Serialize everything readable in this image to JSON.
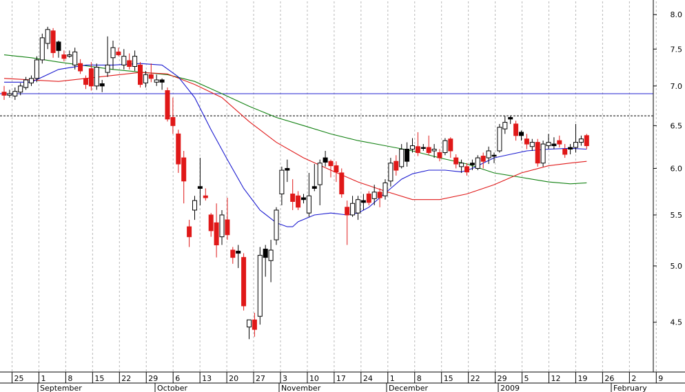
{
  "chart_data": {
    "type": "candlestick",
    "y_scale": "log",
    "ylim": [
      4.1,
      8.2
    ],
    "y_ticks": [
      "8.0",
      "7.5",
      "7.0",
      "6.5",
      "6.0",
      "5.5",
      "5.0",
      "4.5"
    ],
    "x_day_ticks": [
      "25",
      "1",
      "8",
      "15",
      "22",
      "29",
      "6",
      "13",
      "20",
      "27",
      "3",
      "10",
      "17",
      "24",
      "1",
      "8",
      "15",
      "22",
      "29",
      "5",
      "12",
      "19",
      "26",
      "2",
      "9"
    ],
    "x_month_labels": [
      "September",
      "October",
      "November",
      "December",
      "2009",
      "February"
    ],
    "horizontal_lines": [
      {
        "value": 6.9,
        "style": "solid",
        "color": "#1f1fcf"
      },
      {
        "value": 6.62,
        "style": "dashed",
        "color": "#000000"
      }
    ],
    "colors": {
      "up": "#ffffff",
      "down": "#e01818",
      "ma_fast": "#1a1ad0",
      "ma_mid": "#e01818",
      "ma_slow": "#108010",
      "grid": "#b8b8b8"
    },
    "candles": [
      {
        "o": 6.88,
        "h": 7.0,
        "l": 6.82,
        "c": 6.92,
        "col": "r"
      },
      {
        "o": 6.9,
        "h": 6.95,
        "l": 6.85,
        "c": 6.88,
        "col": "w"
      },
      {
        "o": 6.87,
        "h": 6.98,
        "l": 6.82,
        "c": 6.93,
        "col": "w"
      },
      {
        "o": 6.92,
        "h": 7.04,
        "l": 6.88,
        "c": 7.0,
        "col": "w"
      },
      {
        "o": 6.98,
        "h": 7.12,
        "l": 6.95,
        "c": 7.08,
        "col": "w"
      },
      {
        "o": 7.04,
        "h": 7.14,
        "l": 7.0,
        "c": 7.1,
        "col": "w"
      },
      {
        "o": 7.1,
        "h": 7.4,
        "l": 7.05,
        "c": 7.35,
        "col": "w"
      },
      {
        "o": 7.35,
        "h": 7.72,
        "l": 7.3,
        "c": 7.66,
        "col": "w"
      },
      {
        "o": 7.58,
        "h": 7.82,
        "l": 7.5,
        "c": 7.78,
        "col": "w"
      },
      {
        "o": 7.76,
        "h": 7.8,
        "l": 7.38,
        "c": 7.45,
        "col": "r"
      },
      {
        "o": 7.6,
        "h": 7.62,
        "l": 7.38,
        "c": 7.48,
        "col": "b"
      },
      {
        "o": 7.42,
        "h": 7.48,
        "l": 7.33,
        "c": 7.37,
        "col": "r"
      },
      {
        "o": 7.42,
        "h": 7.48,
        "l": 7.38,
        "c": 7.4,
        "col": "w"
      },
      {
        "o": 7.28,
        "h": 7.52,
        "l": 7.22,
        "c": 7.46,
        "col": "w"
      },
      {
        "o": 7.3,
        "h": 7.36,
        "l": 7.16,
        "c": 7.2,
        "col": "r"
      },
      {
        "o": 7.1,
        "h": 7.14,
        "l": 6.96,
        "c": 7.02,
        "col": "r"
      },
      {
        "o": 7.23,
        "h": 7.32,
        "l": 6.94,
        "c": 7.0,
        "col": "r"
      },
      {
        "o": 7.0,
        "h": 7.3,
        "l": 6.95,
        "c": 7.25,
        "col": "w"
      },
      {
        "o": 7.0,
        "h": 7.08,
        "l": 6.92,
        "c": 7.03,
        "col": "b"
      },
      {
        "o": 7.18,
        "h": 7.68,
        "l": 7.12,
        "c": 7.28,
        "col": "w"
      },
      {
        "o": 7.38,
        "h": 7.62,
        "l": 7.22,
        "c": 7.52,
        "col": "w"
      },
      {
        "o": 7.46,
        "h": 7.52,
        "l": 7.4,
        "c": 7.42,
        "col": "r"
      },
      {
        "o": 7.4,
        "h": 7.5,
        "l": 7.22,
        "c": 7.28,
        "col": "w"
      },
      {
        "o": 7.34,
        "h": 7.44,
        "l": 7.22,
        "c": 7.26,
        "col": "r"
      },
      {
        "o": 7.26,
        "h": 7.48,
        "l": 7.2,
        "c": 7.4,
        "col": "w"
      },
      {
        "o": 7.28,
        "h": 7.32,
        "l": 6.98,
        "c": 7.02,
        "col": "r"
      },
      {
        "o": 7.04,
        "h": 7.2,
        "l": 6.98,
        "c": 7.15,
        "col": "w"
      },
      {
        "o": 7.15,
        "h": 7.3,
        "l": 7.05,
        "c": 7.1,
        "col": "r"
      },
      {
        "o": 7.05,
        "h": 7.15,
        "l": 7.0,
        "c": 7.08,
        "col": "w"
      },
      {
        "o": 7.08,
        "h": 7.1,
        "l": 6.95,
        "c": 7.05,
        "col": "b"
      },
      {
        "o": 6.94,
        "h": 6.98,
        "l": 6.55,
        "c": 6.58,
        "col": "r"
      },
      {
        "o": 6.6,
        "h": 6.85,
        "l": 6.4,
        "c": 6.5,
        "col": "r"
      },
      {
        "o": 6.4,
        "h": 6.45,
        "l": 5.95,
        "c": 6.05,
        "col": "r"
      },
      {
        "o": 6.12,
        "h": 6.2,
        "l": 5.62,
        "c": 5.86,
        "col": "r"
      },
      {
        "o": 5.38,
        "h": 5.45,
        "l": 5.18,
        "c": 5.28,
        "col": "r"
      },
      {
        "o": 5.55,
        "h": 5.7,
        "l": 5.45,
        "c": 5.65,
        "col": "w"
      },
      {
        "o": 5.8,
        "h": 6.12,
        "l": 5.6,
        "c": 5.78,
        "col": "b"
      },
      {
        "o": 5.7,
        "h": 5.78,
        "l": 5.65,
        "c": 5.68,
        "col": "r"
      },
      {
        "o": 5.5,
        "h": 5.52,
        "l": 5.28,
        "c": 5.34,
        "col": "r"
      },
      {
        "o": 5.42,
        "h": 5.62,
        "l": 5.08,
        "c": 5.2,
        "col": "r"
      },
      {
        "o": 5.28,
        "h": 5.55,
        "l": 5.2,
        "c": 5.5,
        "col": "w"
      },
      {
        "o": 5.45,
        "h": 5.68,
        "l": 5.25,
        "c": 5.3,
        "col": "r"
      },
      {
        "o": 5.15,
        "h": 5.18,
        "l": 5.02,
        "c": 5.08,
        "col": "r"
      },
      {
        "o": 5.12,
        "h": 5.2,
        "l": 4.98,
        "c": 5.14,
        "col": "b"
      },
      {
        "o": 5.08,
        "h": 5.12,
        "l": 4.6,
        "c": 4.64,
        "col": "r"
      },
      {
        "o": 4.46,
        "h": 4.5,
        "l": 4.36,
        "c": 4.52,
        "col": "w"
      },
      {
        "o": 4.52,
        "h": 4.58,
        "l": 4.38,
        "c": 4.44,
        "col": "r"
      },
      {
        "o": 4.55,
        "h": 5.18,
        "l": 4.48,
        "c": 5.1,
        "col": "w"
      },
      {
        "o": 5.08,
        "h": 5.2,
        "l": 4.9,
        "c": 5.16,
        "col": "b"
      },
      {
        "o": 5.05,
        "h": 5.25,
        "l": 4.85,
        "c": 5.15,
        "col": "w"
      },
      {
        "o": 5.25,
        "h": 5.58,
        "l": 5.2,
        "c": 5.55,
        "col": "w"
      },
      {
        "o": 5.72,
        "h": 6.02,
        "l": 5.6,
        "c": 5.98,
        "col": "w"
      },
      {
        "o": 5.98,
        "h": 6.1,
        "l": 5.85,
        "c": 6.0,
        "col": "b"
      },
      {
        "o": 5.72,
        "h": 5.88,
        "l": 5.55,
        "c": 5.64,
        "col": "r"
      },
      {
        "o": 5.7,
        "h": 5.75,
        "l": 5.55,
        "c": 5.58,
        "col": "r"
      },
      {
        "o": 5.68,
        "h": 5.72,
        "l": 5.62,
        "c": 5.66,
        "col": "b"
      },
      {
        "o": 5.52,
        "h": 5.95,
        "l": 5.48,
        "c": 5.7,
        "col": "w"
      },
      {
        "o": 5.78,
        "h": 6.05,
        "l": 5.75,
        "c": 5.8,
        "col": "b"
      },
      {
        "o": 5.82,
        "h": 6.1,
        "l": 5.6,
        "c": 6.06,
        "col": "w"
      },
      {
        "o": 6.07,
        "h": 6.2,
        "l": 6.02,
        "c": 6.12,
        "col": "b"
      },
      {
        "o": 6.08,
        "h": 6.1,
        "l": 5.9,
        "c": 6.03,
        "col": "r"
      },
      {
        "o": 6.03,
        "h": 6.08,
        "l": 5.85,
        "c": 5.96,
        "col": "r"
      },
      {
        "o": 5.95,
        "h": 6.0,
        "l": 5.68,
        "c": 5.72,
        "col": "r"
      },
      {
        "o": 5.58,
        "h": 5.65,
        "l": 5.2,
        "c": 5.5,
        "col": "r"
      },
      {
        "o": 5.5,
        "h": 5.7,
        "l": 5.48,
        "c": 5.62,
        "col": "w"
      },
      {
        "o": 5.52,
        "h": 5.7,
        "l": 5.45,
        "c": 5.66,
        "col": "w"
      },
      {
        "o": 5.63,
        "h": 5.72,
        "l": 5.55,
        "c": 5.65,
        "col": "b"
      },
      {
        "o": 5.72,
        "h": 5.75,
        "l": 5.6,
        "c": 5.63,
        "col": "r"
      },
      {
        "o": 5.67,
        "h": 5.82,
        "l": 5.6,
        "c": 5.74,
        "col": "w"
      },
      {
        "o": 5.74,
        "h": 5.78,
        "l": 5.58,
        "c": 5.68,
        "col": "r"
      },
      {
        "o": 5.7,
        "h": 5.88,
        "l": 5.66,
        "c": 5.84,
        "col": "w"
      },
      {
        "o": 5.86,
        "h": 6.12,
        "l": 5.8,
        "c": 6.06,
        "col": "w"
      },
      {
        "o": 6.08,
        "h": 6.15,
        "l": 5.92,
        "c": 5.98,
        "col": "r"
      },
      {
        "o": 6.02,
        "h": 6.28,
        "l": 6.0,
        "c": 6.22,
        "col": "w"
      },
      {
        "o": 6.22,
        "h": 6.3,
        "l": 6.02,
        "c": 6.08,
        "col": "b"
      },
      {
        "o": 6.22,
        "h": 6.35,
        "l": 6.18,
        "c": 6.26,
        "col": "w"
      },
      {
        "o": 6.25,
        "h": 6.42,
        "l": 6.14,
        "c": 6.18,
        "col": "r"
      },
      {
        "o": 6.23,
        "h": 6.28,
        "l": 6.2,
        "c": 6.24,
        "col": "b"
      },
      {
        "o": 6.24,
        "h": 6.38,
        "l": 6.15,
        "c": 6.18,
        "col": "r"
      },
      {
        "o": 6.2,
        "h": 6.28,
        "l": 6.12,
        "c": 6.22,
        "col": "w"
      },
      {
        "o": 6.18,
        "h": 6.22,
        "l": 6.08,
        "c": 6.12,
        "col": "r"
      },
      {
        "o": 6.18,
        "h": 6.35,
        "l": 6.15,
        "c": 6.32,
        "col": "w"
      },
      {
        "o": 6.34,
        "h": 6.36,
        "l": 6.12,
        "c": 6.2,
        "col": "r"
      },
      {
        "o": 6.12,
        "h": 6.16,
        "l": 6.0,
        "c": 6.05,
        "col": "r"
      },
      {
        "o": 6.02,
        "h": 6.1,
        "l": 5.95,
        "c": 6.06,
        "col": "w"
      },
      {
        "o": 6.02,
        "h": 6.06,
        "l": 5.92,
        "c": 5.96,
        "col": "r"
      },
      {
        "o": 6.04,
        "h": 6.1,
        "l": 5.98,
        "c": 6.06,
        "col": "b"
      },
      {
        "o": 6.0,
        "h": 6.15,
        "l": 5.98,
        "c": 6.12,
        "col": "w"
      },
      {
        "o": 6.08,
        "h": 6.18,
        "l": 6.0,
        "c": 6.14,
        "col": "r"
      },
      {
        "o": 6.12,
        "h": 6.25,
        "l": 6.05,
        "c": 6.2,
        "col": "w"
      },
      {
        "o": 6.14,
        "h": 6.18,
        "l": 6.06,
        "c": 6.15,
        "col": "b"
      },
      {
        "o": 6.2,
        "h": 6.52,
        "l": 6.18,
        "c": 6.48,
        "col": "w"
      },
      {
        "o": 6.46,
        "h": 6.62,
        "l": 6.4,
        "c": 6.54,
        "col": "w"
      },
      {
        "o": 6.58,
        "h": 6.62,
        "l": 6.52,
        "c": 6.6,
        "col": "b"
      },
      {
        "o": 6.52,
        "h": 6.56,
        "l": 6.32,
        "c": 6.38,
        "col": "r"
      },
      {
        "o": 6.38,
        "h": 6.44,
        "l": 6.32,
        "c": 6.42,
        "col": "b"
      },
      {
        "o": 6.34,
        "h": 6.4,
        "l": 6.22,
        "c": 6.28,
        "col": "r"
      },
      {
        "o": 6.25,
        "h": 6.34,
        "l": 6.2,
        "c": 6.3,
        "col": "w"
      },
      {
        "o": 6.3,
        "h": 6.34,
        "l": 6.02,
        "c": 6.06,
        "col": "r"
      },
      {
        "o": 6.06,
        "h": 6.32,
        "l": 6.02,
        "c": 6.28,
        "col": "w"
      },
      {
        "o": 6.26,
        "h": 6.4,
        "l": 6.22,
        "c": 6.3,
        "col": "w"
      },
      {
        "o": 6.28,
        "h": 6.36,
        "l": 6.22,
        "c": 6.26,
        "col": "b"
      },
      {
        "o": 6.32,
        "h": 6.38,
        "l": 6.24,
        "c": 6.28,
        "col": "r"
      },
      {
        "o": 6.22,
        "h": 6.28,
        "l": 6.12,
        "c": 6.16,
        "col": "r"
      },
      {
        "o": 6.24,
        "h": 6.28,
        "l": 6.16,
        "c": 6.22,
        "col": "b"
      },
      {
        "o": 6.24,
        "h": 6.52,
        "l": 6.18,
        "c": 6.3,
        "col": "w"
      },
      {
        "o": 6.3,
        "h": 6.38,
        "l": 6.26,
        "c": 6.34,
        "col": "w"
      },
      {
        "o": 6.38,
        "h": 6.4,
        "l": 6.22,
        "c": 6.26,
        "col": "r"
      }
    ],
    "ma_fast": [
      [
        0,
        7.05
      ],
      [
        5,
        7.05
      ],
      [
        10,
        7.22
      ],
      [
        15,
        7.28
      ],
      [
        20,
        7.28
      ],
      [
        25,
        7.3
      ],
      [
        29,
        7.28
      ],
      [
        32,
        7.12
      ],
      [
        35,
        6.85
      ],
      [
        38,
        6.45
      ],
      [
        41,
        6.1
      ],
      [
        44,
        5.78
      ],
      [
        47,
        5.55
      ],
      [
        50,
        5.42
      ],
      [
        52,
        5.38
      ],
      [
        53,
        5.38
      ],
      [
        54,
        5.43
      ],
      [
        57,
        5.5
      ],
      [
        60,
        5.52
      ],
      [
        63,
        5.5
      ],
      [
        65,
        5.52
      ],
      [
        67,
        5.58
      ],
      [
        69,
        5.68
      ],
      [
        71,
        5.78
      ],
      [
        73,
        5.88
      ],
      [
        75,
        5.94
      ],
      [
        78,
        5.98
      ],
      [
        81,
        5.98
      ],
      [
        84,
        5.96
      ],
      [
        86,
        6.0
      ],
      [
        88,
        6.06
      ],
      [
        90,
        6.12
      ],
      [
        93,
        6.16
      ],
      [
        96,
        6.2
      ],
      [
        100,
        6.22
      ],
      [
        104,
        6.23
      ],
      [
        107,
        6.22
      ]
    ],
    "ma_mid": [
      [
        0,
        7.1
      ],
      [
        10,
        7.06
      ],
      [
        20,
        7.14
      ],
      [
        25,
        7.18
      ],
      [
        30,
        7.16
      ],
      [
        35,
        7.02
      ],
      [
        40,
        6.85
      ],
      [
        45,
        6.55
      ],
      [
        50,
        6.3
      ],
      [
        55,
        6.12
      ],
      [
        60,
        5.98
      ],
      [
        65,
        5.85
      ],
      [
        70,
        5.75
      ],
      [
        75,
        5.66
      ],
      [
        80,
        5.66
      ],
      [
        85,
        5.72
      ],
      [
        90,
        5.82
      ],
      [
        95,
        5.95
      ],
      [
        100,
        6.03
      ],
      [
        104,
        6.06
      ],
      [
        107,
        6.08
      ]
    ],
    "ma_slow": [
      [
        0,
        7.42
      ],
      [
        5,
        7.38
      ],
      [
        10,
        7.32
      ],
      [
        20,
        7.22
      ],
      [
        30,
        7.15
      ],
      [
        35,
        7.06
      ],
      [
        40,
        6.9
      ],
      [
        45,
        6.74
      ],
      [
        50,
        6.6
      ],
      [
        55,
        6.5
      ],
      [
        60,
        6.4
      ],
      [
        65,
        6.32
      ],
      [
        70,
        6.26
      ],
      [
        75,
        6.2
      ],
      [
        80,
        6.12
      ],
      [
        85,
        6.05
      ],
      [
        90,
        5.95
      ],
      [
        95,
        5.9
      ],
      [
        100,
        5.85
      ],
      [
        104,
        5.83
      ],
      [
        107,
        5.84
      ]
    ]
  }
}
